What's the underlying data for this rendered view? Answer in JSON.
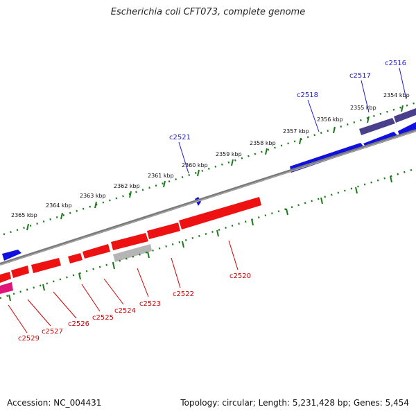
{
  "title": "Escherichia coli CFT073, complete genome",
  "footer": {
    "accession": "Accession: NC_004431",
    "summary": "Topology: circular; Length: 5,231,428 bp; Genes: 5,454"
  },
  "colors": {
    "forward_gene": "#1010e0",
    "forward_gene_dark": "#4a3f8a",
    "reverse_gene": "#ee1111",
    "reverse_gene_gray": "#b5b5b5",
    "reverse_gene_pink": "#e0157a",
    "backbone": "#7a7a7a",
    "ticks": "#1a7a1a",
    "label_blue": "#1a1acc",
    "label_red": "#cc0000"
  },
  "scale_labels": [
    "2354 kbp",
    "2355 kbp",
    "2356 kbp",
    "2357 kbp",
    "2358 kbp",
    "2359 kbp",
    "2360 kbp",
    "2361 kbp",
    "2362 kbp",
    "2363 kbp",
    "2364 kbp",
    "2365 kbp"
  ],
  "forward_gene_labels": [
    "c2516",
    "c2517",
    "c2518",
    "c2521"
  ],
  "reverse_gene_labels": [
    "c2520",
    "c2522",
    "c2523",
    "c2524",
    "c2525",
    "c2526",
    "c2527",
    "c2529"
  ]
}
